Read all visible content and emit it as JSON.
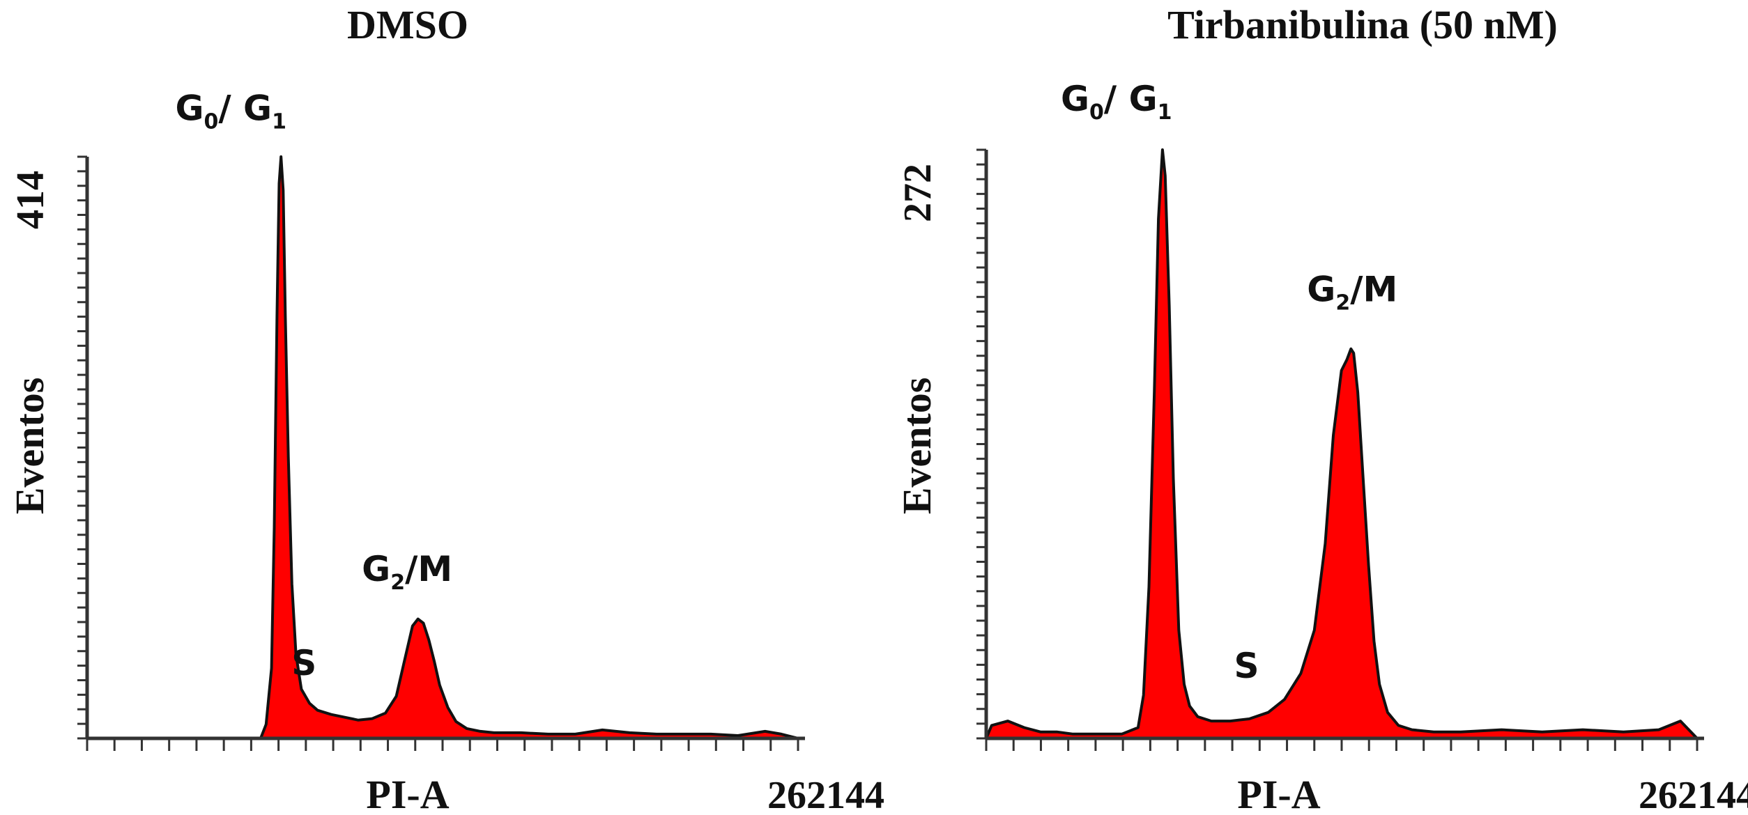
{
  "chart_data": [
    {
      "type": "area",
      "title": "DMSO",
      "xlabel": "PI-A",
      "ylabel": "Eventos",
      "xlim": [
        0,
        262144
      ],
      "ylim": [
        0,
        414
      ],
      "x_tick_label": "262144",
      "y_tick_label": "414",
      "fill_color": "#ff0000",
      "line_color": "#111111",
      "annotations": [
        {
          "base": "G",
          "sub": "0",
          "mid": "/ G",
          "sub2": "1",
          "rest": "",
          "x": 53000,
          "y": 440
        },
        {
          "base": "S",
          "sub": "",
          "mid": "",
          "sub2": "",
          "rest": "",
          "x": 80000,
          "y": 45
        },
        {
          "base": "G",
          "sub": "2",
          "mid": "/M",
          "sub2": "",
          "rest": "",
          "x": 118000,
          "y": 112
        }
      ],
      "series": [
        {
          "x": [
            0,
            64000,
            66000,
            68000,
            69000,
            70000,
            70800,
            71500,
            72300,
            73100,
            74200,
            75500,
            77000,
            79000,
            82000,
            85000,
            90000,
            95000,
            100000,
            105000,
            110000,
            114000,
            117000,
            120000,
            122000,
            124000,
            126000,
            128000,
            130000,
            133000,
            136000,
            140000,
            145000,
            150000,
            160000,
            170000,
            180000,
            190000,
            200000,
            210000,
            220000,
            230000,
            240000,
            250000,
            256000,
            262144
          ],
          "y": [
            0,
            0,
            10,
            50,
            150,
            300,
            395,
            414,
            390,
            300,
            200,
            110,
            60,
            35,
            25,
            20,
            17,
            15,
            13,
            14,
            18,
            30,
            55,
            80,
            85,
            82,
            70,
            55,
            38,
            22,
            12,
            7,
            5,
            4,
            4,
            3,
            3,
            6,
            4,
            3,
            3,
            3,
            2,
            5,
            3,
            0
          ]
        }
      ]
    },
    {
      "type": "area",
      "title": "Tirbanibulina (50 nM)",
      "xlabel": "PI-A",
      "ylabel": "Eventos",
      "xlim": [
        0,
        262144
      ],
      "ylim": [
        0,
        272
      ],
      "x_tick_label": "262144",
      "y_tick_label": "272",
      "fill_color": "#ff0000",
      "line_color": "#111111",
      "annotations": [
        {
          "base": "G",
          "sub": "0",
          "mid": "/ G",
          "sub2": "1",
          "rest": "",
          "x": 48000,
          "y": 290
        },
        {
          "base": "S",
          "sub": "",
          "mid": "",
          "sub2": "",
          "rest": "",
          "x": 96000,
          "y": 28
        },
        {
          "base": "G",
          "sub": "2",
          "mid": "/M",
          "sub2": "",
          "rest": "",
          "x": 135000,
          "y": 202
        }
      ],
      "series": [
        {
          "x": [
            0,
            2000,
            8000,
            14000,
            20000,
            26000,
            32000,
            40000,
            50000,
            56000,
            58000,
            60000,
            62000,
            63500,
            65000,
            66000,
            67500,
            69000,
            71000,
            73000,
            75000,
            78000,
            83000,
            90000,
            97000,
            104000,
            110000,
            116000,
            121000,
            125000,
            128000,
            131000,
            133000,
            134500,
            135500,
            137000,
            139000,
            141000,
            143000,
            145000,
            148000,
            152000,
            157000,
            165000,
            175000,
            190000,
            205000,
            220000,
            235000,
            248000,
            256000,
            262144
          ],
          "y": [
            0,
            6,
            8,
            5,
            3,
            3,
            2,
            2,
            2,
            5,
            20,
            70,
            160,
            240,
            272,
            260,
            200,
            120,
            50,
            25,
            15,
            10,
            8,
            8,
            9,
            12,
            18,
            30,
            50,
            90,
            140,
            170,
            175,
            180,
            178,
            160,
            120,
            80,
            45,
            25,
            12,
            6,
            4,
            3,
            3,
            4,
            3,
            4,
            3,
            4,
            8,
            0
          ]
        }
      ]
    }
  ]
}
